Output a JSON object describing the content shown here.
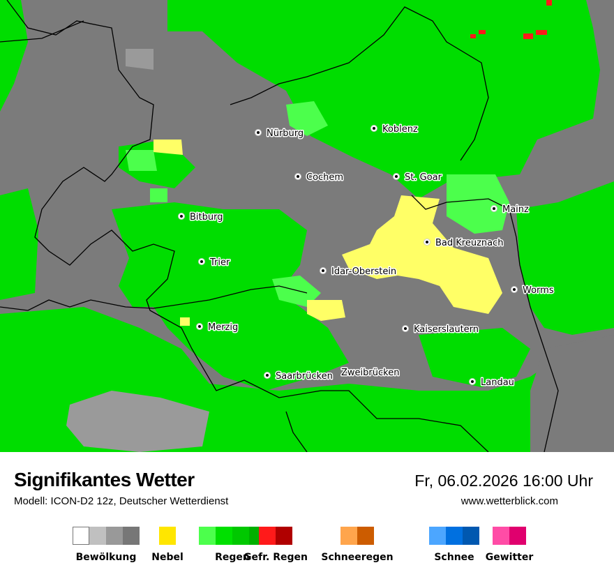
{
  "header": {
    "title": "Signifikantes Wetter",
    "subtitle": "Modell: ICON-D2 12z, Deutscher Wetterdienst",
    "datetime": "Fr, 06.02.2026 16:00 Uhr",
    "website": "www.wetterblick.com"
  },
  "colors": {
    "cloud": "#7b7b7b",
    "cloud_light": "#9a9a9a",
    "rain": "#00dd00",
    "rain_light": "#4cff4c",
    "fog": "#ffff66",
    "freezing_rain": "#ff1a1a",
    "border": "#000000"
  },
  "cities": [
    {
      "name": "Nürburg"
    },
    {
      "name": "Koblenz"
    },
    {
      "name": "Cochem"
    },
    {
      "name": "St. Goar"
    },
    {
      "name": "Mainz"
    },
    {
      "name": "Bitburg"
    },
    {
      "name": "Bad Kreuznach"
    },
    {
      "name": "Trier"
    },
    {
      "name": "Idar-Oberstein"
    },
    {
      "name": "Worms"
    },
    {
      "name": "Merzig"
    },
    {
      "name": "Kaiserslautern"
    },
    {
      "name": "Saarbrücken"
    },
    {
      "name": "Zweibrücken"
    },
    {
      "name": "Landau"
    }
  ],
  "legend": [
    {
      "label": "Bewölkung",
      "colors": [
        "#ffffff",
        "#c0c0c0",
        "#999999",
        "#777777"
      ]
    },
    {
      "label": "Nebel",
      "colors": [
        "#ffe600"
      ]
    },
    {
      "label": "Regen",
      "colors": [
        "#4cff4c",
        "#00e000",
        "#00c800",
        "#00b000"
      ]
    },
    {
      "label": "Gefr. Regen",
      "colors": [
        "#ff1a1a",
        "#b00000"
      ]
    },
    {
      "label": "Schneeregen",
      "colors": [
        "#ffa54c",
        "#cc5c00"
      ]
    },
    {
      "label": "Schnee",
      "colors": [
        "#4ca6ff",
        "#0070e0",
        "#0058b0"
      ]
    },
    {
      "label": "Gewitter",
      "colors": [
        "#ff4ca6",
        "#e0006e"
      ]
    }
  ]
}
